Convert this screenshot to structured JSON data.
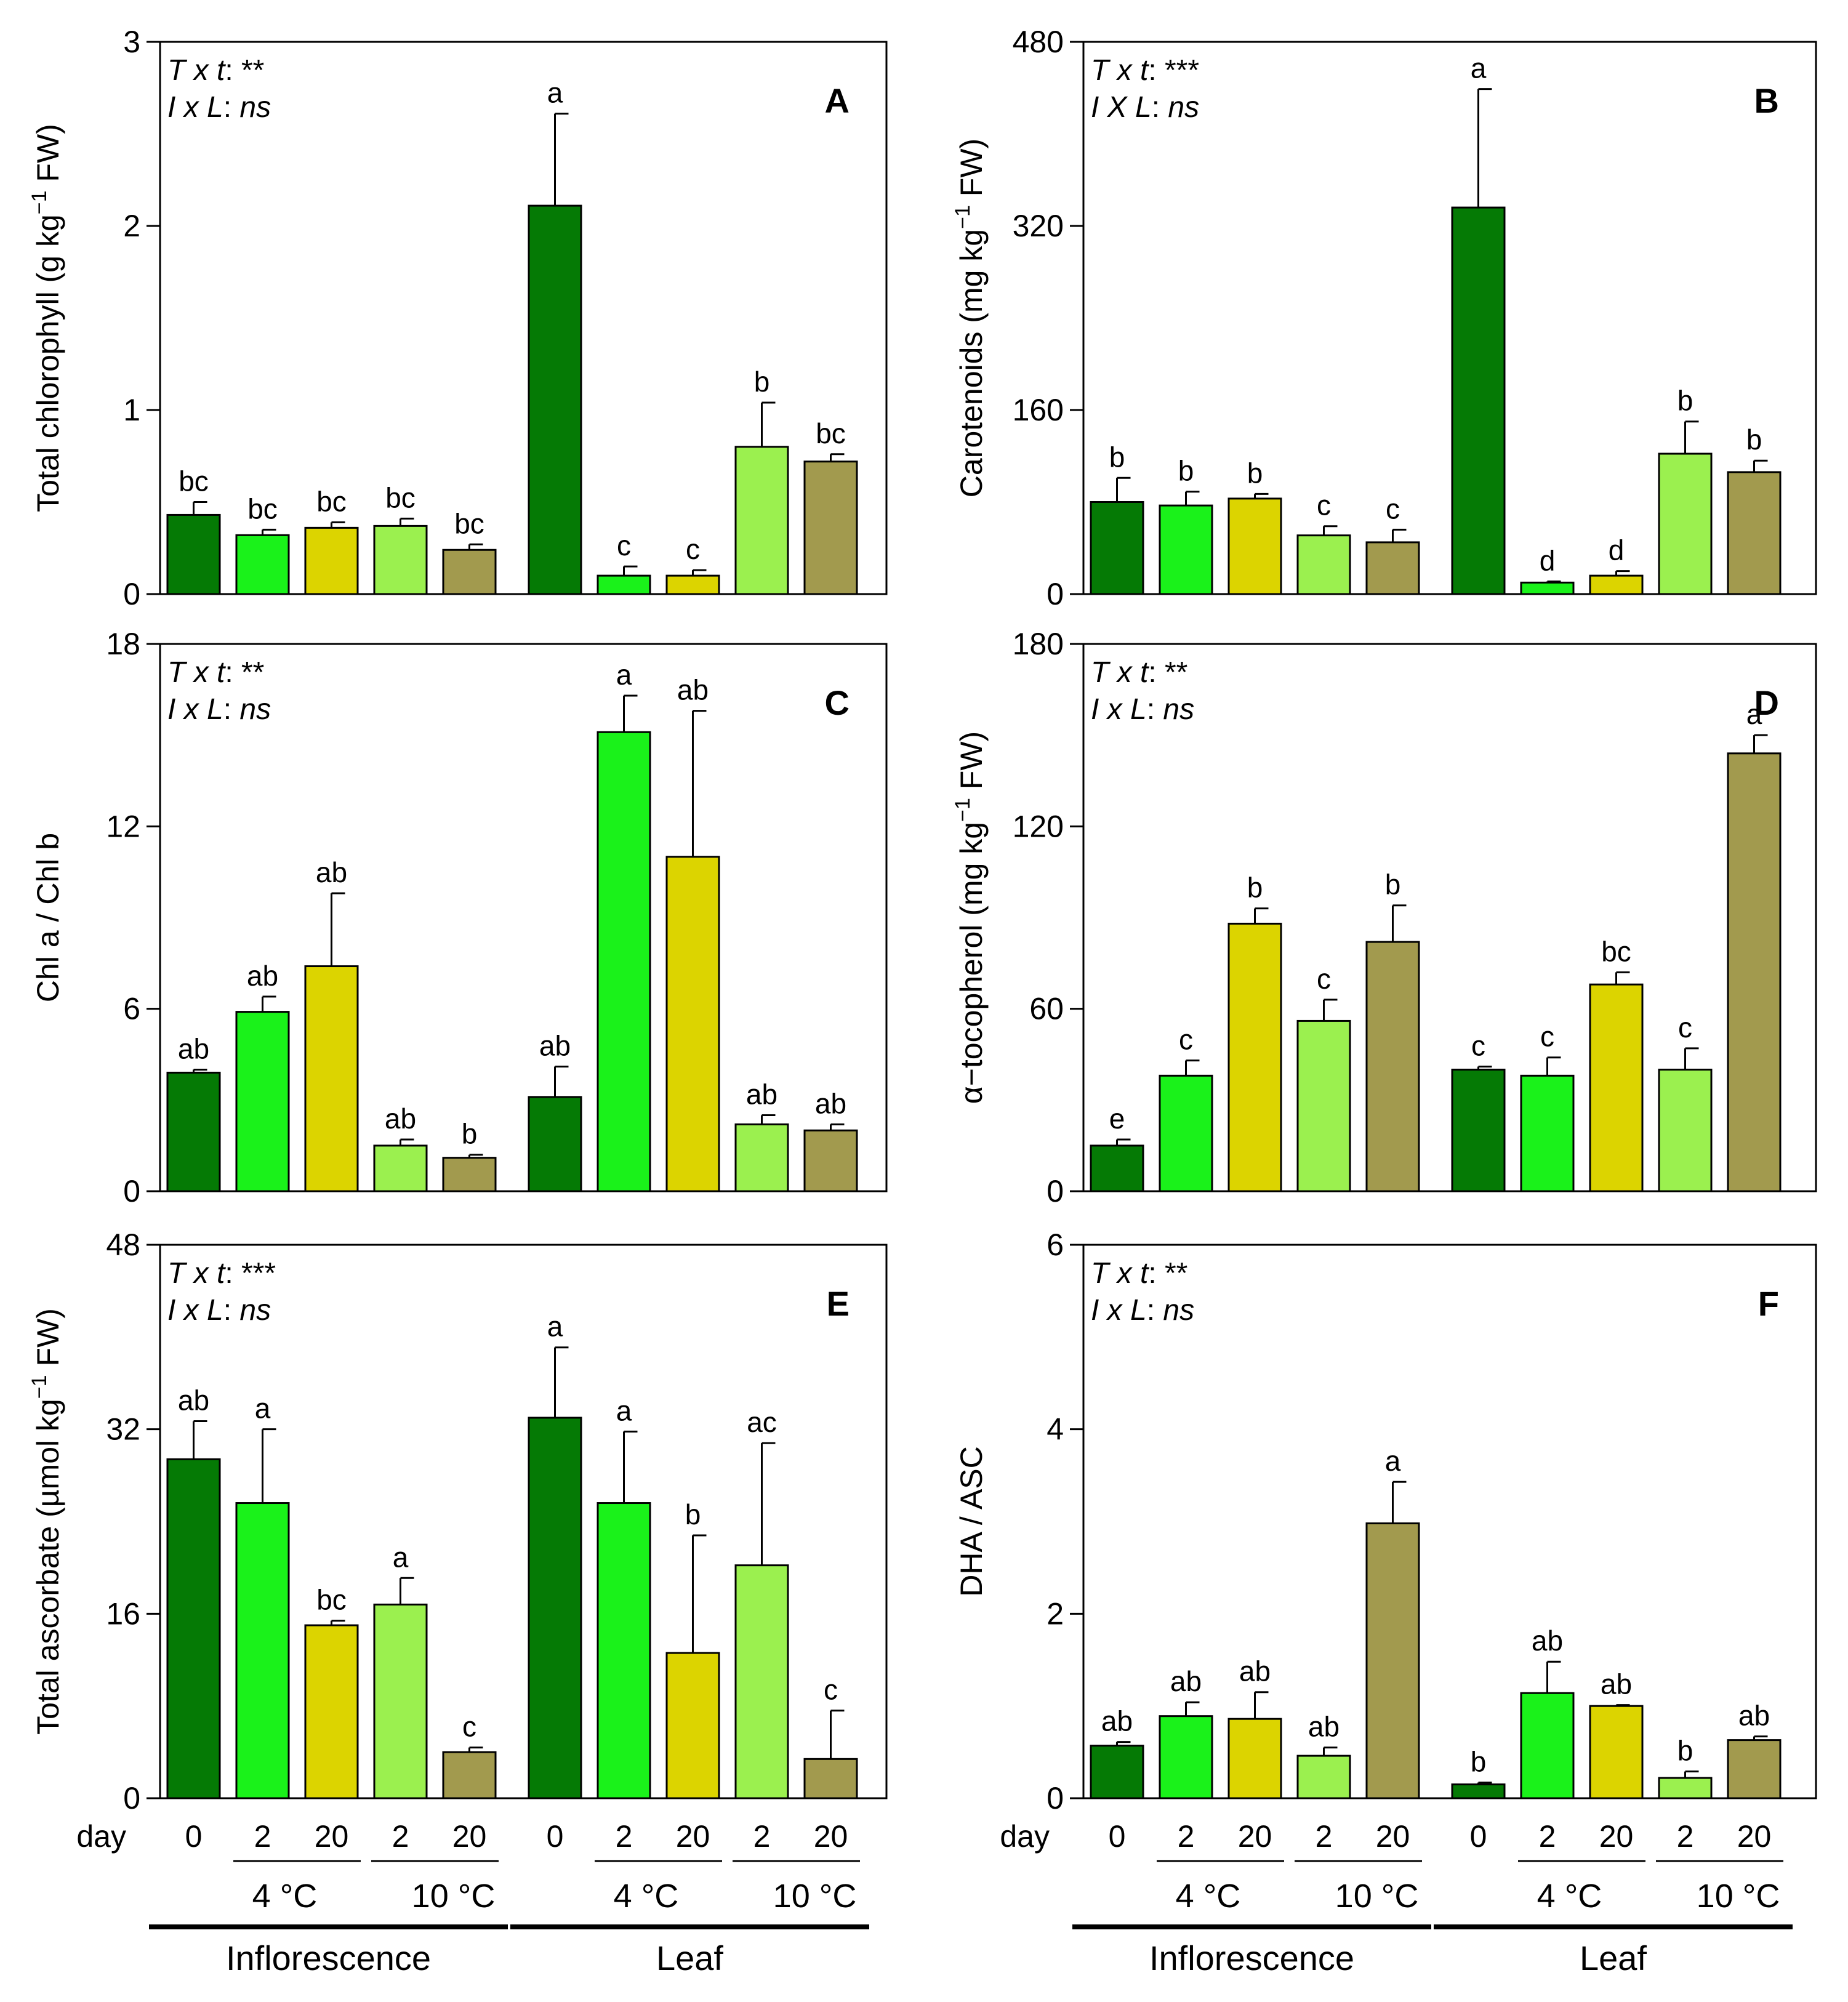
{
  "figure": {
    "x_axis": {
      "day_label": "day",
      "groups": [
        {
          "name": "Inflorescence",
          "day_ticks": [
            "0",
            "2",
            "20",
            "2",
            "20"
          ],
          "temp_labels": [
            "4 °C",
            "10 °C"
          ]
        },
        {
          "name": "Leaf",
          "day_ticks": [
            "0",
            "2",
            "20",
            "2",
            "20"
          ],
          "temp_labels": [
            "4 °C",
            "10 °C"
          ]
        }
      ]
    },
    "treatments": [
      {
        "name": "day 0",
        "color": "#057a05"
      },
      {
        "name": "4 °C, day 2",
        "color": "#1af21a"
      },
      {
        "name": "4 °C, day 20",
        "color": "#dcd400"
      },
      {
        "name": "10 °C, day 2",
        "color": "#9bf04f"
      },
      {
        "name": "10 °C, day 20",
        "color": "#a29a4e"
      }
    ]
  },
  "chart_data": [
    {
      "type": "bar",
      "panel": "A",
      "ylabel_parts": [
        "Total chlorophyll (g kg",
        "−1",
        " FW)"
      ],
      "ylim": [
        0,
        3
      ],
      "yticks": [
        "0",
        "1",
        "2",
        "3"
      ],
      "stats": [
        {
          "term": "T x t",
          "value": "**"
        },
        {
          "term": "I x L",
          "value": "ns"
        }
      ],
      "groups": [
        {
          "name": "Inflorescence",
          "values": [
            0.43,
            0.32,
            0.36,
            0.37,
            0.24
          ],
          "errors": [
            0.07,
            0.03,
            0.03,
            0.04,
            0.03
          ],
          "letters": [
            "bc",
            "bc",
            "bc",
            "bc",
            "bc"
          ]
        },
        {
          "name": "Leaf",
          "values": [
            2.11,
            0.1,
            0.1,
            0.8,
            0.72
          ],
          "errors": [
            0.5,
            0.05,
            0.03,
            0.24,
            0.04
          ],
          "letters": [
            "a",
            "c",
            "c",
            "b",
            "bc"
          ]
        }
      ]
    },
    {
      "type": "bar",
      "panel": "B",
      "ylabel_parts": [
        "Carotenoids (mg kg",
        "−1",
        " FW)"
      ],
      "ylim": [
        0,
        480
      ],
      "yticks": [
        "0",
        "160",
        "320",
        "480"
      ],
      "stats": [
        {
          "term": "T x t",
          "value": "***"
        },
        {
          "term": "I X L",
          "value": "ns"
        }
      ],
      "groups": [
        {
          "name": "Inflorescence",
          "values": [
            80,
            77,
            83,
            51,
            45
          ],
          "errors": [
            21,
            12,
            4,
            8,
            11
          ],
          "letters": [
            "b",
            "b",
            "b",
            "c",
            "c"
          ]
        },
        {
          "name": "Leaf",
          "values": [
            336,
            10,
            16,
            122,
            106
          ],
          "errors": [
            103,
            1,
            4,
            28,
            10
          ],
          "letters": [
            "a",
            "d",
            "d",
            "b",
            "b"
          ]
        }
      ]
    },
    {
      "type": "bar",
      "panel": "C",
      "ylabel_parts": [
        "Chl a / Chl b",
        "",
        ""
      ],
      "ylim": [
        0,
        18
      ],
      "yticks": [
        "0",
        "6",
        "12",
        "18"
      ],
      "stats": [
        {
          "term": "T x t",
          "value": "**"
        },
        {
          "term": "I x L",
          "value": "ns"
        }
      ],
      "groups": [
        {
          "name": "Inflorescence",
          "values": [
            3.9,
            5.9,
            7.4,
            1.5,
            1.1
          ],
          "errors": [
            0.1,
            0.5,
            2.4,
            0.2,
            0.1
          ],
          "letters": [
            "ab",
            "ab",
            "ab",
            "ab",
            "b"
          ]
        },
        {
          "name": "Leaf",
          "values": [
            3.1,
            15.1,
            11.0,
            2.2,
            2.0
          ],
          "errors": [
            1.0,
            1.2,
            4.8,
            0.3,
            0.2
          ],
          "letters": [
            "ab",
            "a",
            "ab",
            "ab",
            "ab"
          ]
        }
      ]
    },
    {
      "type": "bar",
      "panel": "D",
      "ylabel_parts": [
        "α−tocopherol (mg kg",
        "−1",
        " FW)"
      ],
      "ylim": [
        0,
        180
      ],
      "yticks": [
        "0",
        "60",
        "120",
        "180"
      ],
      "stats": [
        {
          "term": "T x t",
          "value": "**"
        },
        {
          "term": "I x L",
          "value": "ns"
        }
      ],
      "groups": [
        {
          "name": "Inflorescence",
          "values": [
            15,
            38,
            88,
            56,
            82
          ],
          "errors": [
            2,
            5,
            5,
            7,
            12
          ],
          "letters": [
            "e",
            "c",
            "b",
            "c",
            "b"
          ]
        },
        {
          "name": "Leaf",
          "values": [
            40,
            38,
            68,
            40,
            144
          ],
          "errors": [
            1,
            6,
            4,
            7,
            6
          ],
          "letters": [
            "c",
            "c",
            "bc",
            "c",
            "a"
          ]
        }
      ]
    },
    {
      "type": "bar",
      "panel": "E",
      "ylabel_parts": [
        "Total ascorbate (µmol kg",
        "−1",
        " FW)"
      ],
      "ylim": [
        0,
        48
      ],
      "yticks": [
        "0",
        "16",
        "32",
        "48"
      ],
      "stats": [
        {
          "term": "T x t",
          "value": "***"
        },
        {
          "term": "I x L",
          "value": "ns"
        }
      ],
      "groups": [
        {
          "name": "Inflorescence",
          "values": [
            29.4,
            25.6,
            15.0,
            16.8,
            4.0
          ],
          "errors": [
            3.3,
            6.4,
            0.4,
            2.3,
            0.4
          ],
          "letters": [
            "ab",
            "a",
            "bc",
            "a",
            "c"
          ]
        },
        {
          "name": "Leaf",
          "values": [
            33.0,
            25.6,
            12.6,
            20.2,
            3.4
          ],
          "errors": [
            6.1,
            6.2,
            10.2,
            10.6,
            4.2
          ],
          "letters": [
            "a",
            "a",
            "b",
            "ac",
            "c"
          ]
        }
      ]
    },
    {
      "type": "bar",
      "panel": "F",
      "ylabel_parts": [
        "DHA / ASC",
        "",
        ""
      ],
      "ylim": [
        0,
        6
      ],
      "yticks": [
        "0",
        "2",
        "4",
        "6"
      ],
      "stats": [
        {
          "term": "T x t",
          "value": "**"
        },
        {
          "term": "I x L",
          "value": "ns"
        }
      ],
      "groups": [
        {
          "name": "Inflorescence",
          "values": [
            0.57,
            0.89,
            0.86,
            0.46,
            2.98
          ],
          "errors": [
            0.04,
            0.15,
            0.29,
            0.09,
            0.45
          ],
          "letters": [
            "ab",
            "ab",
            "ab",
            "ab",
            "a"
          ]
        },
        {
          "name": "Leaf",
          "values": [
            0.15,
            1.14,
            1.0,
            0.22,
            0.63
          ],
          "errors": [
            0.02,
            0.34,
            0.01,
            0.07,
            0.04
          ],
          "letters": [
            "b",
            "ab",
            "ab",
            "b",
            "ab"
          ]
        }
      ]
    }
  ]
}
